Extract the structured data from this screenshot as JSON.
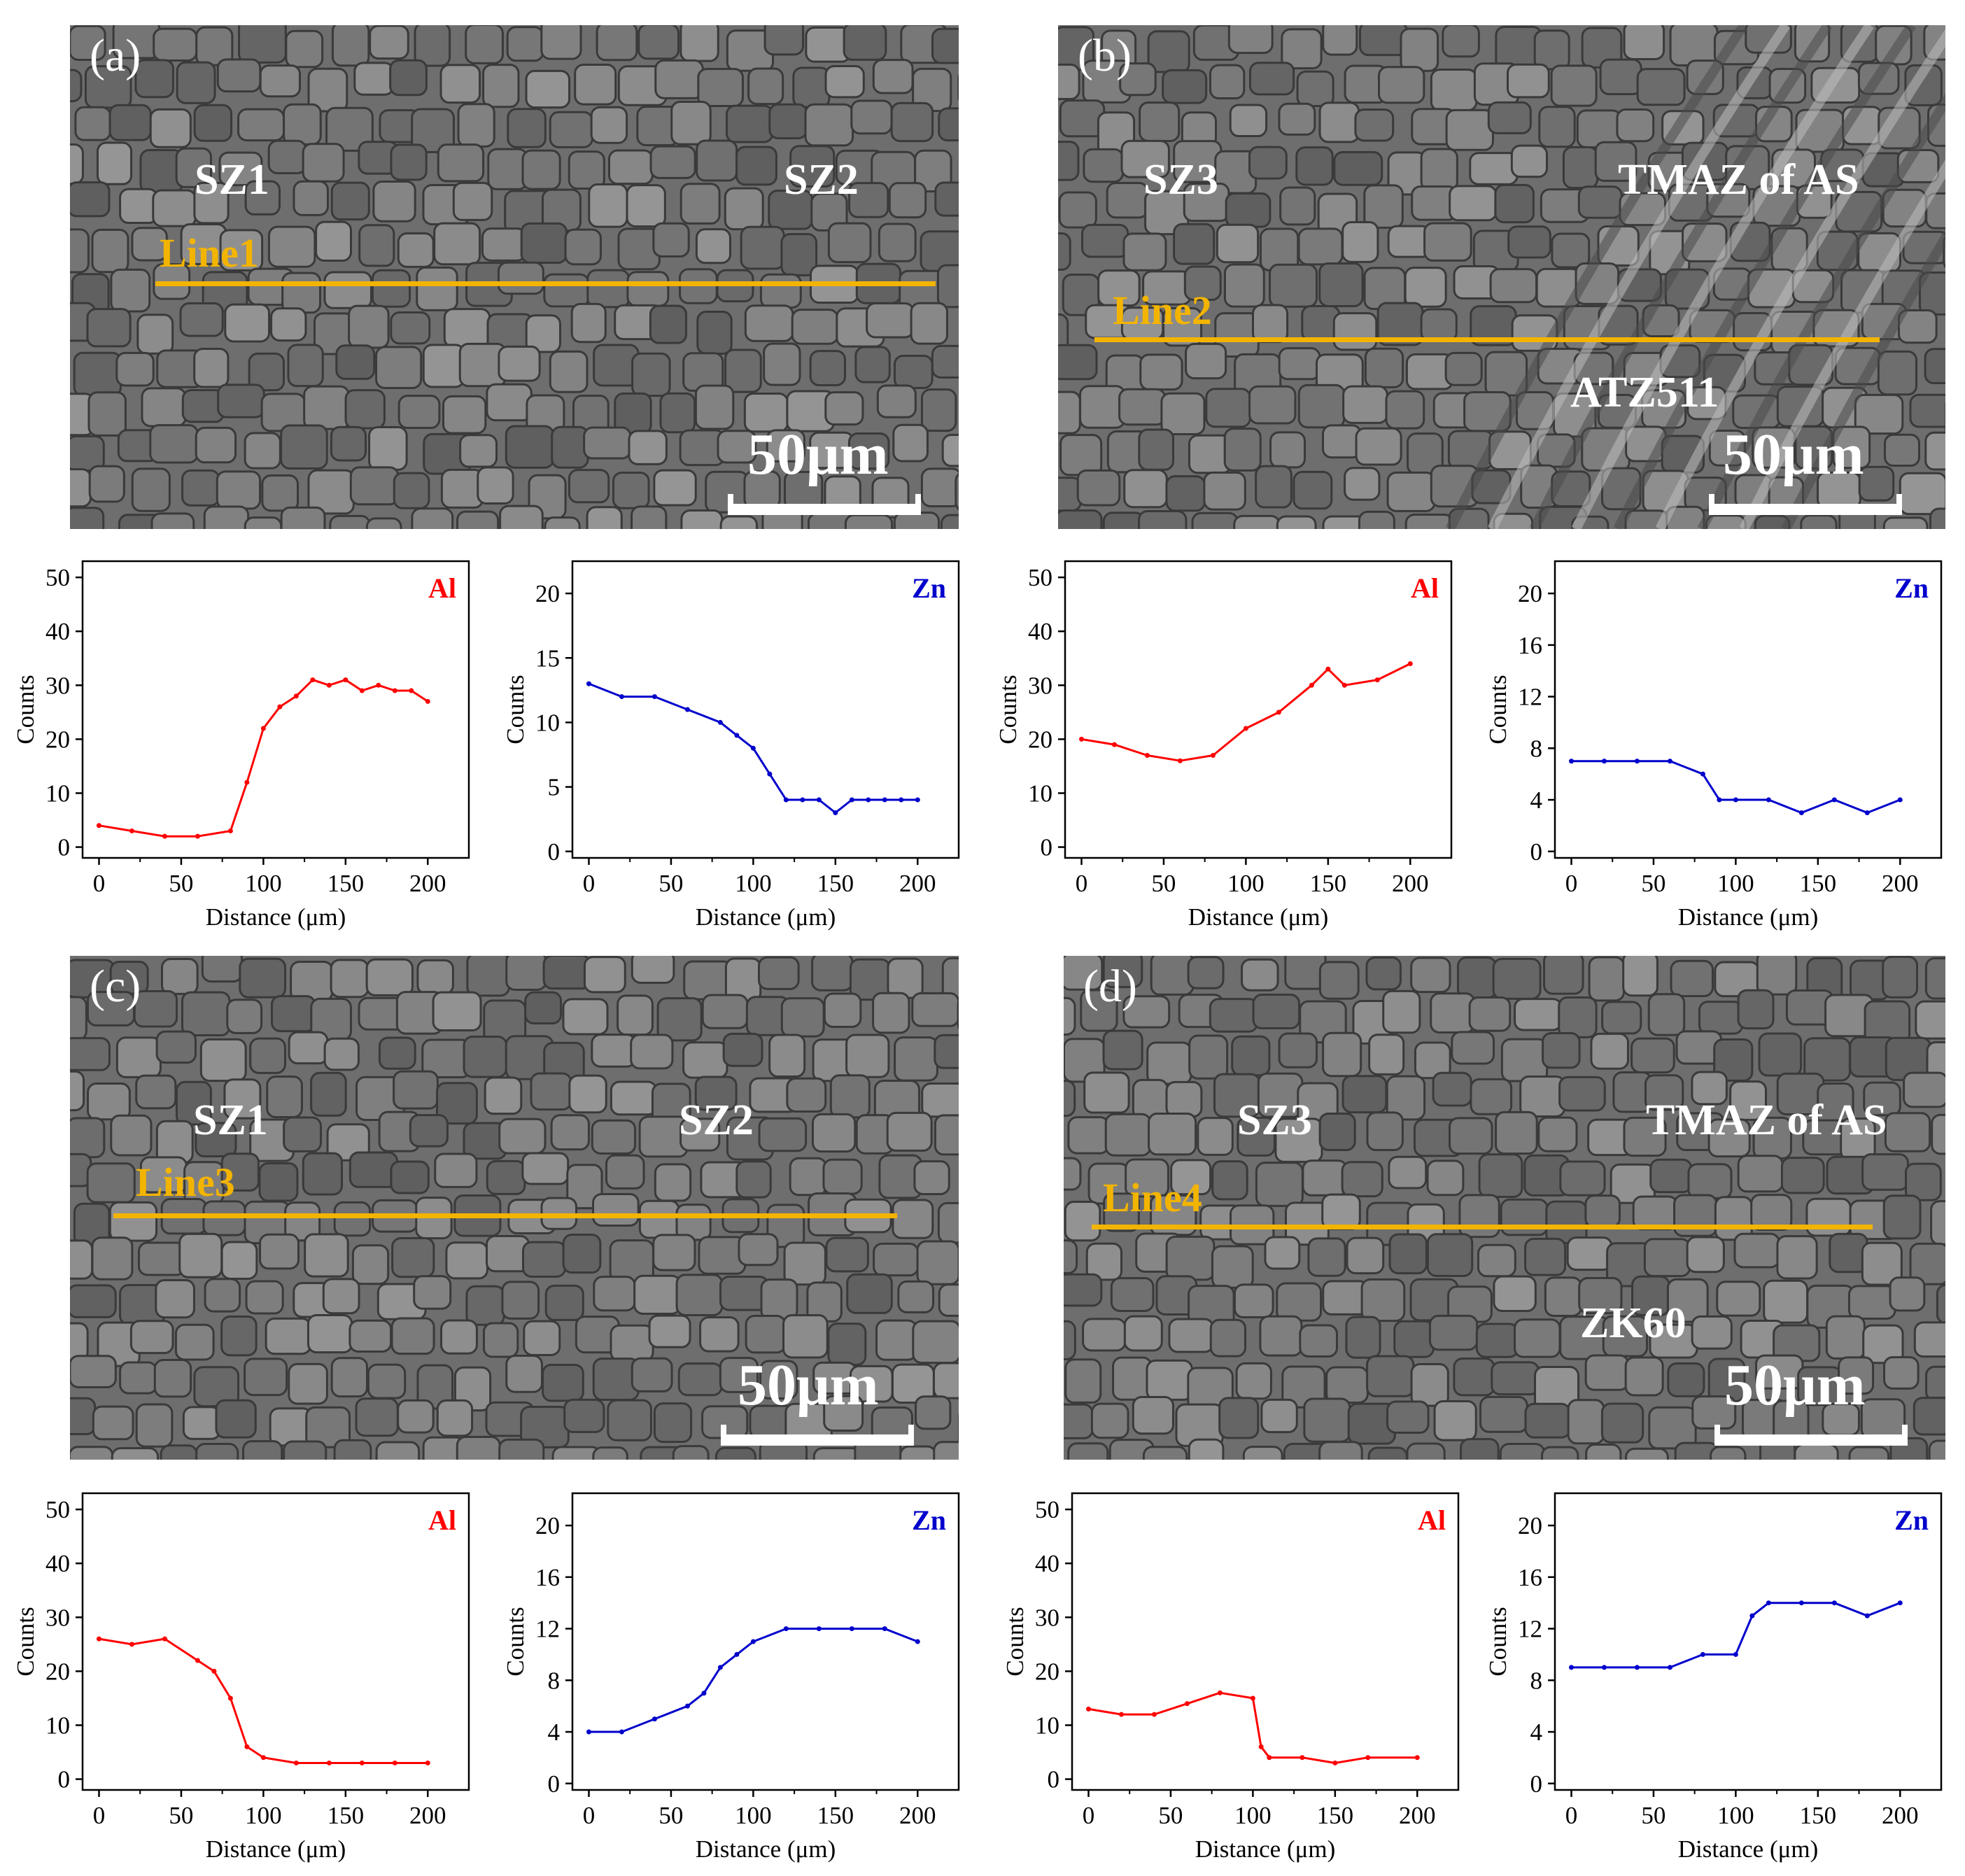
{
  "panels": [
    {
      "letter": "(a)",
      "regions": [
        "SZ1",
        "SZ2"
      ],
      "line_label": "Line1",
      "scale_label": "50μm"
    },
    {
      "letter": "(b)",
      "regions": [
        "SZ3",
        "TMAZ of AS",
        "ATZ511"
      ],
      "line_label": "Line2",
      "scale_label": "50μm"
    },
    {
      "letter": "(c)",
      "regions": [
        "SZ1",
        "SZ2"
      ],
      "line_label": "Line3",
      "scale_label": "50μm"
    },
    {
      "letter": "(d)",
      "regions": [
        "SZ3",
        "TMAZ of AS",
        "ZK60"
      ],
      "line_label": "Line4",
      "scale_label": "50μm"
    }
  ],
  "colors": {
    "Al": "#ff0000",
    "Zn": "#0000cc",
    "line": "#f3b400"
  },
  "chart_data": [
    {
      "id": "a-Al",
      "type": "line",
      "element": "Al",
      "xlabel": "Distance (μm)",
      "ylabel": "Counts",
      "xlim": [
        -10,
        225
      ],
      "ylim": [
        -2,
        53
      ],
      "xticks": [
        0,
        50,
        100,
        150,
        200
      ],
      "yticks": [
        0,
        10,
        20,
        30,
        40,
        50
      ],
      "x": [
        0,
        20,
        40,
        60,
        80,
        90,
        100,
        110,
        120,
        130,
        140,
        150,
        160,
        170,
        180,
        190,
        200
      ],
      "values": [
        4,
        3,
        2,
        2,
        3,
        12,
        22,
        26,
        28,
        31,
        30,
        31,
        29,
        30,
        29,
        29,
        27
      ]
    },
    {
      "id": "a-Zn",
      "type": "line",
      "element": "Zn",
      "xlabel": "Distance (μm)",
      "ylabel": "Counts",
      "xlim": [
        -10,
        225
      ],
      "ylim": [
        -0.5,
        22.5
      ],
      "xticks": [
        0,
        50,
        100,
        150,
        200
      ],
      "yticks": [
        0,
        5,
        10,
        15,
        20
      ],
      "x": [
        0,
        20,
        40,
        60,
        80,
        90,
        100,
        110,
        120,
        130,
        140,
        150,
        160,
        170,
        180,
        190,
        200
      ],
      "values": [
        13,
        12,
        12,
        11,
        10,
        9,
        8,
        6,
        4,
        4,
        4,
        3,
        4,
        4,
        4,
        4,
        4
      ]
    },
    {
      "id": "b-Al",
      "type": "line",
      "element": "Al",
      "xlabel": "Distance (μm)",
      "ylabel": "Counts",
      "xlim": [
        -10,
        225
      ],
      "ylim": [
        -2,
        53
      ],
      "xticks": [
        0,
        50,
        100,
        150,
        200
      ],
      "yticks": [
        0,
        10,
        20,
        30,
        40,
        50
      ],
      "x": [
        0,
        20,
        40,
        60,
        80,
        100,
        120,
        140,
        150,
        160,
        180,
        200
      ],
      "values": [
        20,
        19,
        17,
        16,
        17,
        22,
        25,
        30,
        33,
        30,
        31,
        34
      ]
    },
    {
      "id": "b-Zn",
      "type": "line",
      "element": "Zn",
      "xlabel": "Distance (μm)",
      "ylabel": "Counts",
      "xlim": [
        -10,
        225
      ],
      "ylim": [
        -0.5,
        22.5
      ],
      "xticks": [
        0,
        50,
        100,
        150,
        200
      ],
      "yticks": [
        0,
        4,
        8,
        12,
        16,
        20
      ],
      "x": [
        0,
        20,
        40,
        60,
        80,
        90,
        100,
        120,
        140,
        160,
        180,
        200
      ],
      "values": [
        7,
        7,
        7,
        7,
        6,
        4,
        4,
        4,
        3,
        4,
        3,
        4
      ]
    },
    {
      "id": "c-Al",
      "type": "line",
      "element": "Al",
      "xlabel": "Distance (μm)",
      "ylabel": "Counts",
      "xlim": [
        -10,
        225
      ],
      "ylim": [
        -2,
        53
      ],
      "xticks": [
        0,
        50,
        100,
        150,
        200
      ],
      "yticks": [
        0,
        10,
        20,
        30,
        40,
        50
      ],
      "x": [
        0,
        20,
        40,
        60,
        70,
        80,
        90,
        100,
        120,
        140,
        160,
        180,
        200
      ],
      "values": [
        26,
        25,
        26,
        22,
        20,
        15,
        6,
        4,
        3,
        3,
        3,
        3,
        3
      ]
    },
    {
      "id": "c-Zn",
      "type": "line",
      "element": "Zn",
      "xlabel": "Distance (μm)",
      "ylabel": "Counts",
      "xlim": [
        -10,
        225
      ],
      "ylim": [
        -0.5,
        22.5
      ],
      "xticks": [
        0,
        50,
        100,
        150,
        200
      ],
      "yticks": [
        0,
        4,
        8,
        12,
        16,
        20
      ],
      "x": [
        0,
        20,
        40,
        60,
        70,
        80,
        90,
        100,
        120,
        140,
        160,
        180,
        200
      ],
      "values": [
        4,
        4,
        5,
        6,
        7,
        9,
        10,
        11,
        12,
        12,
        12,
        12,
        11
      ]
    },
    {
      "id": "d-Al",
      "type": "line",
      "element": "Al",
      "xlabel": "Distance (μm)",
      "ylabel": "Counts",
      "xlim": [
        -10,
        225
      ],
      "ylim": [
        -2,
        53
      ],
      "xticks": [
        0,
        50,
        100,
        150,
        200
      ],
      "yticks": [
        0,
        10,
        20,
        30,
        40,
        50
      ],
      "x": [
        0,
        20,
        40,
        60,
        80,
        100,
        105,
        110,
        130,
        150,
        170,
        200
      ],
      "values": [
        13,
        12,
        12,
        14,
        16,
        15,
        6,
        4,
        4,
        3,
        4,
        4
      ]
    },
    {
      "id": "d-Zn",
      "type": "line",
      "element": "Zn",
      "xlabel": "Distance (μm)",
      "ylabel": "Counts",
      "xlim": [
        -10,
        225
      ],
      "ylim": [
        -0.5,
        22.5
      ],
      "xticks": [
        0,
        50,
        100,
        150,
        200
      ],
      "yticks": [
        0,
        4,
        8,
        12,
        16,
        20
      ],
      "x": [
        0,
        20,
        40,
        60,
        80,
        100,
        110,
        120,
        140,
        160,
        180,
        200
      ],
      "values": [
        9,
        9,
        9,
        9,
        10,
        10,
        13,
        14,
        14,
        14,
        13,
        14
      ]
    }
  ]
}
